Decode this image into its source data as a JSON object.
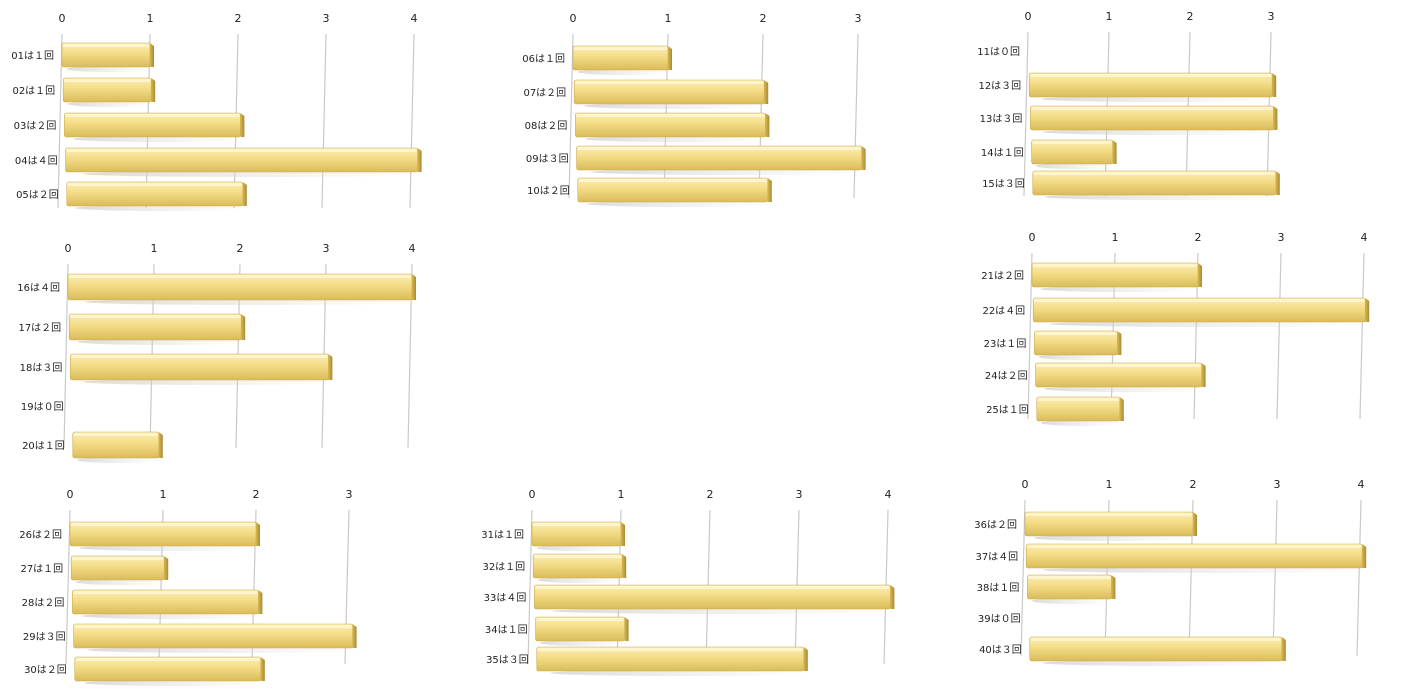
{
  "chart_data": [
    {
      "type": "bar",
      "orientation": "horizontal",
      "categories": [
        "01は１回",
        "02は１回",
        "03は２回",
        "04は４回",
        "05は２回"
      ],
      "values": [
        1,
        1,
        2,
        4,
        2
      ],
      "ticks": [
        "0",
        "1",
        "2",
        "3",
        "4"
      ],
      "xlim": [
        0,
        4
      ],
      "grid": true,
      "color": "#f3dc8a"
    },
    {
      "type": "bar",
      "orientation": "horizontal",
      "categories": [
        "06は１回",
        "07は２回",
        "08は２回",
        "09は３回",
        "10は２回"
      ],
      "values": [
        1,
        2,
        2,
        3,
        2
      ],
      "ticks": [
        "0",
        "1",
        "2",
        "3"
      ],
      "xlim": [
        0,
        3
      ],
      "grid": true,
      "color": "#f3dc8a"
    },
    {
      "type": "bar",
      "orientation": "horizontal",
      "categories": [
        "11は０回",
        "12は３回",
        "13は３回",
        "14は１回",
        "15は３回"
      ],
      "values": [
        0,
        3,
        3,
        1,
        3
      ],
      "ticks": [
        "0",
        "1",
        "2",
        "3"
      ],
      "xlim": [
        0,
        3
      ],
      "grid": true,
      "color": "#f3dc8a"
    },
    {
      "type": "bar",
      "orientation": "horizontal",
      "categories": [
        "16は４回",
        "17は２回",
        "18は３回",
        "19は０回",
        "20は１回"
      ],
      "values": [
        4,
        2,
        3,
        0,
        1
      ],
      "ticks": [
        "0",
        "1",
        "2",
        "3",
        "4"
      ],
      "xlim": [
        0,
        4
      ],
      "grid": true,
      "color": "#f3dc8a"
    },
    {
      "type": "bar",
      "orientation": "horizontal",
      "categories": [
        "21は２回",
        "22は４回",
        "23は１回",
        "24は２回",
        "25は１回"
      ],
      "values": [
        2,
        4,
        1,
        2,
        1
      ],
      "ticks": [
        "0",
        "1",
        "2",
        "3",
        "4"
      ],
      "xlim": [
        0,
        4
      ],
      "grid": true,
      "color": "#f3dc8a"
    },
    {
      "type": "bar",
      "orientation": "horizontal",
      "categories": [
        "26は２回",
        "27は１回",
        "28は２回",
        "29は３回",
        "30は２回"
      ],
      "values": [
        2,
        1,
        2,
        3,
        2
      ],
      "ticks": [
        "0",
        "1",
        "2",
        "3"
      ],
      "xlim": [
        0,
        3
      ],
      "grid": true,
      "color": "#f3dc8a"
    },
    {
      "type": "bar",
      "orientation": "horizontal",
      "categories": [
        "31は１回",
        "32は１回",
        "33は４回",
        "34は１回",
        "35は３回"
      ],
      "values": [
        1,
        1,
        4,
        1,
        3
      ],
      "ticks": [
        "0",
        "1",
        "2",
        "3",
        "4"
      ],
      "xlim": [
        0,
        4
      ],
      "grid": true,
      "color": "#f3dc8a"
    },
    {
      "type": "bar",
      "orientation": "horizontal",
      "categories": [
        "36は２回",
        "37は４回",
        "38は１回",
        "39は０回",
        "40は３回"
      ],
      "values": [
        2,
        4,
        1,
        0,
        3
      ],
      "ticks": [
        "0",
        "1",
        "2",
        "3",
        "4"
      ],
      "xlim": [
        0,
        4
      ],
      "grid": true,
      "color": "#f3dc8a"
    }
  ]
}
